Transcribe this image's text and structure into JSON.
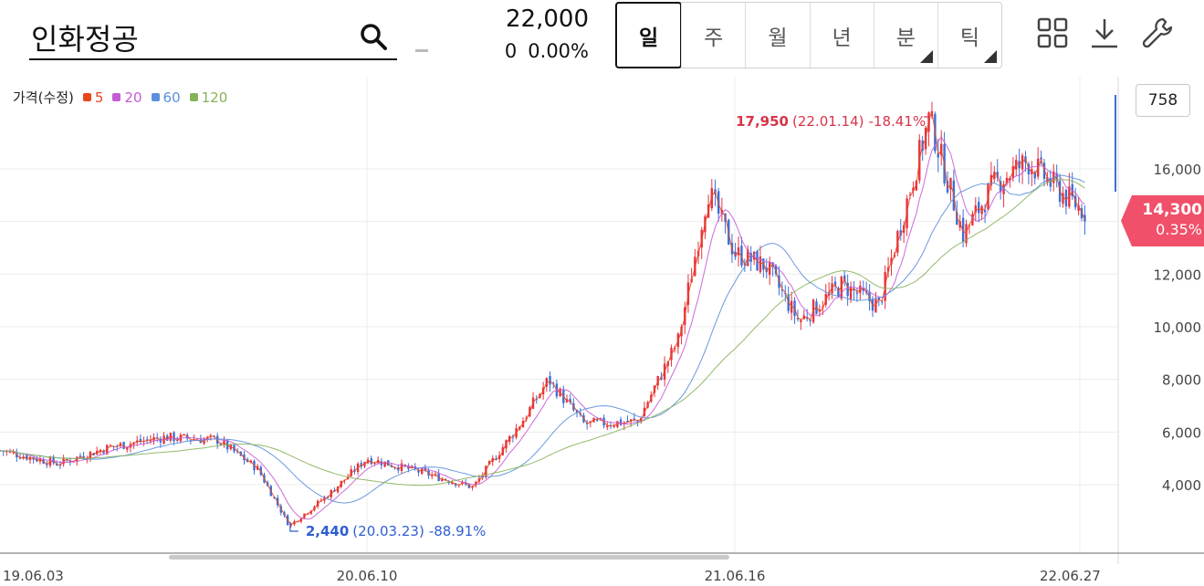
{
  "header": {
    "search_value": "인화정공",
    "price": "22,000",
    "change": "0",
    "change_pct": "0.00%",
    "periods": [
      {
        "label": "일",
        "active": true,
        "has_menu": false
      },
      {
        "label": "주",
        "active": false,
        "has_menu": false
      },
      {
        "label": "월",
        "active": false,
        "has_menu": false
      },
      {
        "label": "년",
        "active": false,
        "has_menu": false
      },
      {
        "label": "분",
        "active": false,
        "has_menu": true
      },
      {
        "label": "틱",
        "active": false,
        "has_menu": true
      }
    ],
    "tools": [
      "grid-layout-icon",
      "download-icon",
      "wrench-icon"
    ]
  },
  "legend": {
    "label": "가격(수정)",
    "items": [
      {
        "label": "5",
        "color": "#e8471e"
      },
      {
        "label": "20",
        "color": "#c45cd4"
      },
      {
        "label": "60",
        "color": "#5b8fdb"
      },
      {
        "label": "120",
        "color": "#86b25a"
      }
    ]
  },
  "volume_badge": "758",
  "last_price": {
    "price": "14,300",
    "pct": "0.35%"
  },
  "chart_data": {
    "type": "candlestick",
    "x_ticks": [
      "19.06.03",
      "20.06.10",
      "21.06.16",
      "22.06.27"
    ],
    "y_ticks": [
      4000,
      6000,
      8000,
      10000,
      12000,
      14000,
      16000
    ],
    "y_tick_labels": [
      "4,000",
      "6,000",
      "8,000",
      "10,000",
      "12,000",
      "14,000",
      "16,000"
    ],
    "ylim": [
      1400,
      19500
    ],
    "series_path": [
      [
        "19.06.03",
        5300
      ],
      [
        "19.08.01",
        4800
      ],
      [
        "19.09.20",
        5400
      ],
      [
        "19.11.15",
        5800
      ],
      [
        "20.01.10",
        5700
      ],
      [
        "20.02.20",
        4600
      ],
      [
        "20.03.23",
        2440
      ],
      [
        "20.05.01",
        3600
      ],
      [
        "20.06.10",
        5000
      ],
      [
        "20.08.01",
        4500
      ],
      [
        "20.09.25",
        3900
      ],
      [
        "20.11.15",
        6500
      ],
      [
        "20.12.10",
        8000
      ],
      [
        "21.01.15",
        6300
      ],
      [
        "21.03.10",
        6400
      ],
      [
        "21.04.20",
        9500
      ],
      [
        "21.05.20",
        15200
      ],
      [
        "21.06.16",
        12800
      ],
      [
        "21.07.20",
        12300
      ],
      [
        "21.08.25",
        10200
      ],
      [
        "21.10.10",
        11600
      ],
      [
        "21.11.20",
        10800
      ],
      [
        "22.01.14",
        17950
      ],
      [
        "22.02.20",
        13500
      ],
      [
        "22.03.25",
        15400
      ],
      [
        "22.05.01",
        16300
      ],
      [
        "22.06.10",
        15000
      ],
      [
        "22.07.05",
        14300
      ]
    ],
    "ma_periods": [
      5,
      20,
      60,
      120
    ],
    "annotations": {
      "high": {
        "value": "17,950",
        "date": "(22.01.14)",
        "pct": "-18.41%"
      },
      "low": {
        "value": "2,440",
        "date": "(20.03.23)",
        "pct": "-88.91%"
      }
    },
    "up_color": "#e8333f",
    "down_color": "#3b6fd8"
  }
}
